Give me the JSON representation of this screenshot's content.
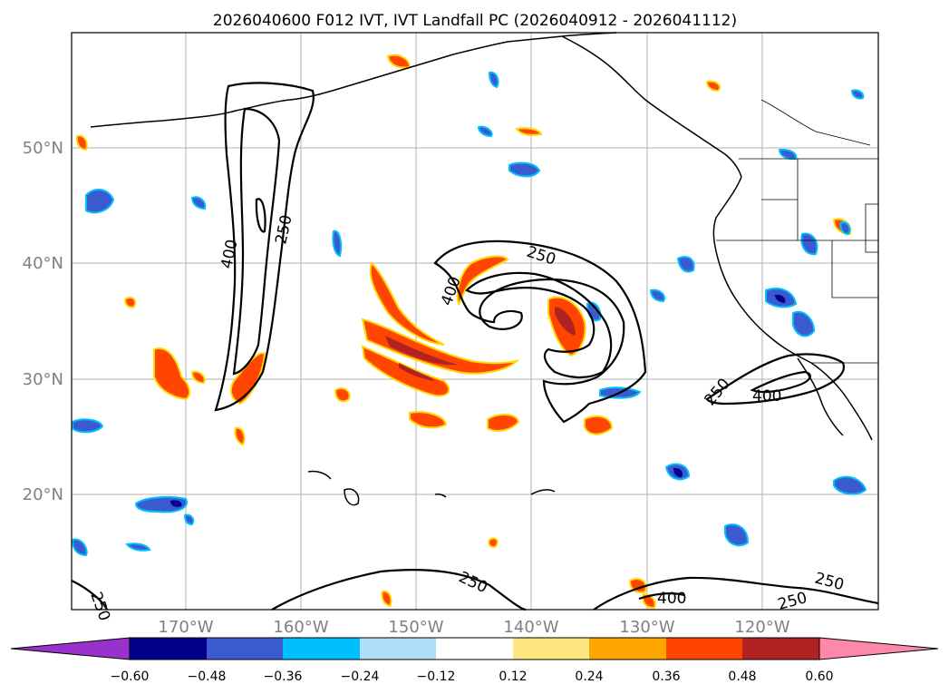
{
  "title": "2026040600 F012 IVT, IVT Landfall PC (2026040912 - 2026041112)",
  "lon_labels": [
    "170°W",
    "160°W",
    "150°W",
    "140°W",
    "130°W",
    "120°W"
  ],
  "lat_labels": [
    "50°N",
    "40°N",
    "30°N",
    "20°N"
  ],
  "contour_labels": [
    "250",
    "400",
    "250",
    "400",
    "250",
    "400",
    "250",
    "250",
    "400",
    "250",
    "250"
  ],
  "colorbar": {
    "tick_labels": [
      "−0.60",
      "−0.48",
      "−0.36",
      "−0.24",
      "−0.12",
      "0.12",
      "0.24",
      "0.36",
      "0.48",
      "0.60"
    ],
    "colors": [
      "#9932cc",
      "#00008b",
      "#3a5bd0",
      "#00bfff",
      "#aee0f8",
      "#ffffff",
      "#ffe680",
      "#ffa500",
      "#ff4500",
      "#b22222",
      "#ff88aa"
    ]
  },
  "colors": {
    "neg_dark": "#00008b",
    "neg_mid": "#3a5bd0",
    "neg_light": "#00bfff",
    "neg_pale": "#aee0f8",
    "pos_pale": "#ffe680",
    "pos_mid": "#ffa500",
    "pos_strong": "#ff4500",
    "pos_dark": "#b22222"
  }
}
